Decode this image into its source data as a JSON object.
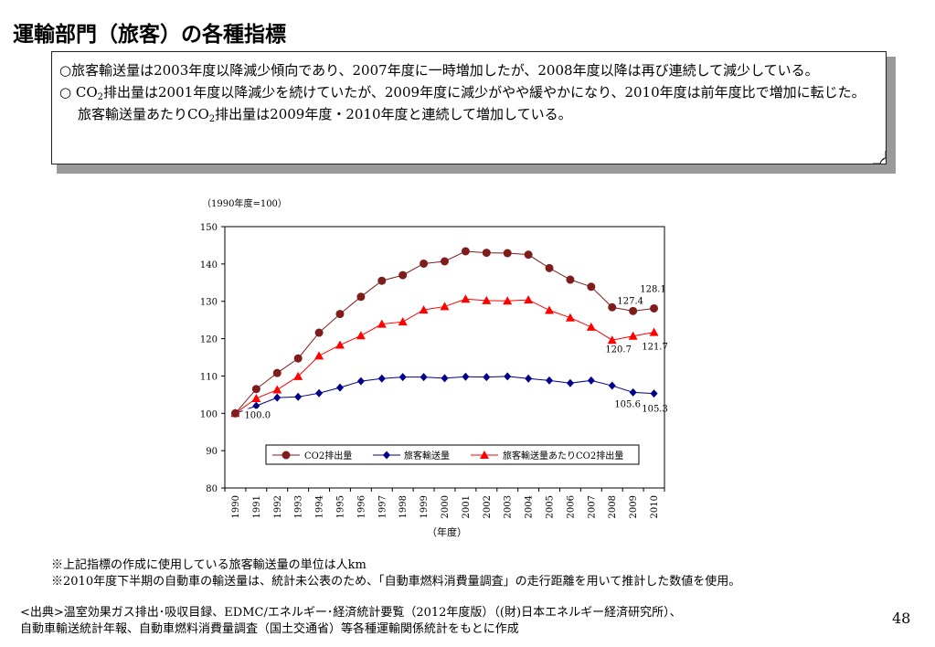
{
  "page": {
    "title": "運輸部門（旅客）の各種指標",
    "page_number": "48"
  },
  "note": {
    "line1": "○旅客輸送量は2003年度以降減少傾向であり、2007年度に一時増加したが、2008年度以降は再び連続して減少している。",
    "line2_prefix": "○ CO",
    "line2_mid": "排出量は2001年度以降減少を続けていたが、2009年度に減少がやや緩やかになり、2010年度は前年度比で増加に転じた。旅客輸送量あたりCO",
    "line2_suffix": "排出量は2009年度・2010年度と連続して増加している。",
    "subscript": "2"
  },
  "footnotes": {
    "f1": "※上記指標の作成に使用している旅客輸送量の単位は人km",
    "f2": "※2010年度下半期の自動車の輸送量は、統計未公表のため、「自動車燃料消費量調査」の走行距離を用いて推計した数値を使用。"
  },
  "source": {
    "line1": "<出典>温室効果ガス排出･吸収目録、EDMC/エネルギー･経済統計要覧（2012年度版）（(財)日本エネルギー経済研究所）、",
    "line2": "自動車輸送統計年報、自動車燃料消費量調査（国土交通省）等各種運輸関係統計をもとに作成"
  },
  "chart_data": {
    "type": "line",
    "unit_label": "（1990年度=100）",
    "xlabel": "（年度）",
    "ylim": [
      80,
      150
    ],
    "yticks": [
      80,
      90,
      100,
      110,
      120,
      130,
      140,
      150
    ],
    "x": [
      "1990",
      "1991",
      "1992",
      "1993",
      "1994",
      "1995",
      "1996",
      "1997",
      "1998",
      "1999",
      "2000",
      "2001",
      "2002",
      "2003",
      "2004",
      "2005",
      "2006",
      "2007",
      "2008",
      "2009",
      "2010"
    ],
    "series": [
      {
        "name": "CO2排出量",
        "color": "#7f1d1d",
        "marker": "circle",
        "values": [
          100.0,
          106.5,
          110.8,
          114.7,
          121.6,
          126.6,
          131.2,
          135.5,
          137.0,
          140.1,
          140.7,
          143.4,
          143.0,
          142.9,
          142.5,
          138.9,
          135.8,
          133.9,
          128.4,
          127.4,
          128.1
        ]
      },
      {
        "name": "旅客輸送量",
        "color": "#00008b",
        "marker": "diamond",
        "values": [
          100.0,
          102.0,
          104.2,
          104.4,
          105.4,
          106.9,
          108.6,
          109.3,
          109.7,
          109.7,
          109.4,
          109.8,
          109.7,
          109.9,
          109.3,
          108.8,
          108.1,
          108.8,
          107.4,
          105.6,
          105.3
        ]
      },
      {
        "name": "旅客輸送量あたりCO2排出量",
        "color": "#ff0000",
        "marker": "triangle",
        "values": [
          100.0,
          104.0,
          106.3,
          109.9,
          115.4,
          118.3,
          120.8,
          123.9,
          124.5,
          127.7,
          128.6,
          130.6,
          130.2,
          130.1,
          130.4,
          127.6,
          125.6,
          123.1,
          119.6,
          120.7,
          121.7
        ]
      }
    ],
    "data_labels": [
      {
        "text": "100.0"
      },
      {
        "text": "127.4"
      },
      {
        "text": "128.1"
      },
      {
        "text": "120.7"
      },
      {
        "text": "121.7"
      },
      {
        "text": "105.6"
      },
      {
        "text": "105.3"
      }
    ],
    "legend_position": "bottom-inside"
  }
}
